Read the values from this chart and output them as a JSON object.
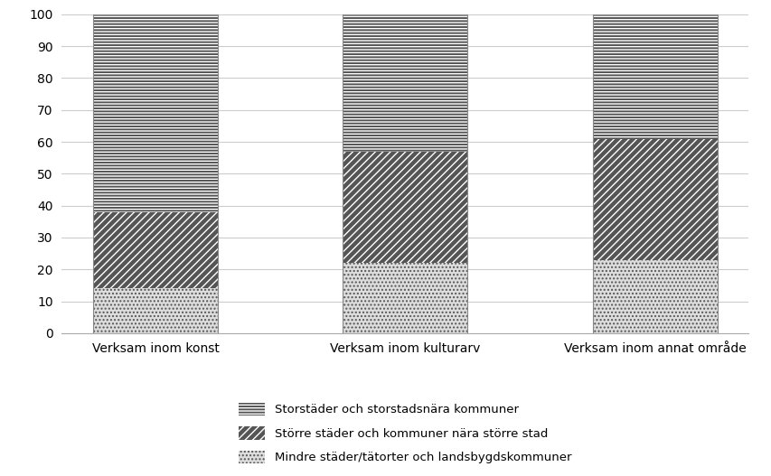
{
  "categories": [
    "Verksam inom konst",
    "Verksam inom kulturarv",
    "Verksam inom annat område"
  ],
  "series": [
    {
      "label": "Storstäder och storstadsnära kommuner",
      "values": [
        62,
        43,
        39
      ],
      "hatch": "-----",
      "facecolor": "#555555",
      "edgecolor": "#ffffff",
      "hatch_linewidth": 0.8
    },
    {
      "label": "Större städer och kommuner nära större stad",
      "values": [
        24,
        35,
        38
      ],
      "hatch": "////",
      "facecolor": "#555555",
      "edgecolor": "#ffffff",
      "hatch_linewidth": 0.8
    },
    {
      "label": "Mindre städer/tätorter och landsbygdskommuner",
      "values": [
        14,
        22,
        23
      ],
      "hatch": "....",
      "facecolor": "#dddddd",
      "edgecolor": "#555555",
      "hatch_linewidth": 0.8
    }
  ],
  "ylim": [
    0,
    100
  ],
  "yticks": [
    0,
    10,
    20,
    30,
    40,
    50,
    60,
    70,
    80,
    90,
    100
  ],
  "bar_width": 0.5,
  "background_color": "#ffffff",
  "grid_color": "#cccccc"
}
